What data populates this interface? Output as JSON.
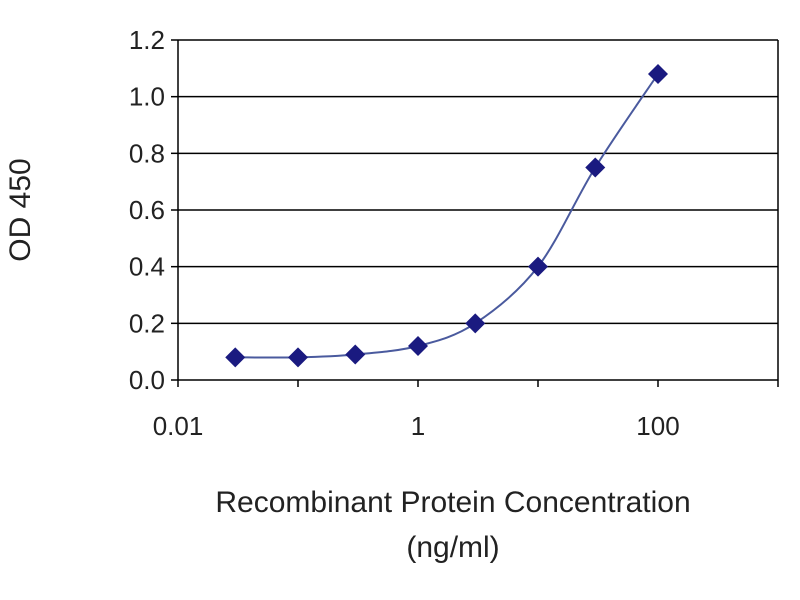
{
  "chart_data": {
    "type": "scatter",
    "title": "",
    "xlabel": "Recombinant Protein Concentration",
    "xlabel_unit": "(ng/ml)",
    "ylabel": "OD 450",
    "x_scale": "log",
    "xlim": [
      0.01,
      1000
    ],
    "ylim": [
      0,
      1.2
    ],
    "x_ticks": [
      0.01,
      1,
      100
    ],
    "x_tick_labels": [
      "0.01",
      "1",
      "100"
    ],
    "y_ticks": [
      0,
      0.2,
      0.4,
      0.6,
      0.8,
      1.0,
      1.2
    ],
    "y_tick_labels": [
      "0.0",
      "0.2",
      "0.4",
      "0.6",
      "0.8",
      "1.0",
      "1.2"
    ],
    "grid": "horizontal",
    "series": [
      {
        "x": [
          0.03,
          0.1,
          0.3,
          1,
          3,
          10,
          30,
          100
        ],
        "y": [
          0.08,
          0.08,
          0.09,
          0.12,
          0.2,
          0.4,
          0.75,
          1.08
        ],
        "color": "#1a1a80",
        "marker": "diamond",
        "fit_line": true
      }
    ],
    "colors": {
      "line": "#4a5a9e",
      "marker": "#1a1a80",
      "grid": "#000000",
      "frame": "#000000"
    }
  }
}
